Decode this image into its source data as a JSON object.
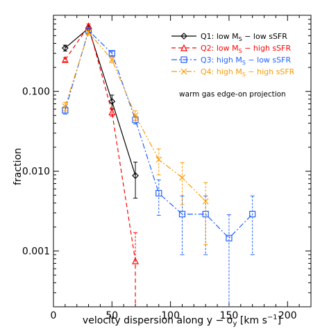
{
  "chart_data": {
    "type": "line",
    "xlabel": "velocity dispersion along y − σ",
    "xlabel_sub": "y",
    "xlabel_unit": "[km s",
    "xlabel_unit_sup": "−1",
    "xlabel_unit_end": "]",
    "ylabel": "fraction",
    "xlim": [
      0,
      220
    ],
    "ylim": [
      0.0002,
      0.9
    ],
    "yscale": "log",
    "x_ticks": [
      0,
      50,
      100,
      150,
      200
    ],
    "x_tick_labels": [
      "0",
      "50",
      "100",
      "150",
      "200"
    ],
    "y_ticks": [
      0.1,
      0.01,
      0.001
    ],
    "y_tick_labels": [
      "0.100",
      "0.010",
      "0.001"
    ],
    "annotation": "warm gas edge-on projection",
    "legend_position": "top-right",
    "series": [
      {
        "name": "Q1: low M",
        "name_sub": "S",
        "name_rest": " − low sSFR",
        "color": "#000000",
        "marker": "diamond",
        "dash": "solid",
        "x": [
          10,
          30,
          50,
          70
        ],
        "y": [
          0.35,
          0.62,
          0.075,
          0.0088
        ],
        "err": [
          0.03,
          0.04,
          0.015,
          0.0042
        ]
      },
      {
        "name": "Q2: low M",
        "name_sub": "S",
        "name_rest": " − high sSFR",
        "color": "#ff0000",
        "marker": "triangle",
        "dash": "dashed",
        "x": [
          10,
          30,
          50,
          70
        ],
        "y": [
          0.25,
          0.66,
          0.055,
          0.00075
        ],
        "err": [
          0.015,
          0.04,
          0.006,
          0.0
        ]
      },
      {
        "name": "Q3: high M",
        "name_sub": "S",
        "name_rest": " − low sSFR",
        "color": "#1f5fff",
        "marker": "square",
        "dash": "dashdot",
        "x": [
          10,
          30,
          50,
          70,
          90,
          110,
          130,
          150,
          170
        ],
        "y": [
          0.058,
          0.58,
          0.3,
          0.044,
          0.0053,
          0.0029,
          0.0029,
          0.00145,
          0.0029
        ],
        "err": [
          0.006,
          0.04,
          0.02,
          0.005,
          0.0025,
          0.002,
          0.002,
          0.0014,
          0.002
        ]
      },
      {
        "name": "Q4: high M",
        "name_sub": "S",
        "name_rest": " − high sSFR",
        "color": "#ff9900",
        "marker": "x",
        "dash": "dashdotdot",
        "x": [
          10,
          30,
          50,
          70,
          90,
          110,
          130
        ],
        "y": [
          0.065,
          0.55,
          0.25,
          0.05,
          0.014,
          0.0083,
          0.0042
        ],
        "err": [
          0.008,
          0.04,
          0.02,
          0.007,
          0.005,
          0.0045,
          0.003
        ]
      }
    ]
  }
}
